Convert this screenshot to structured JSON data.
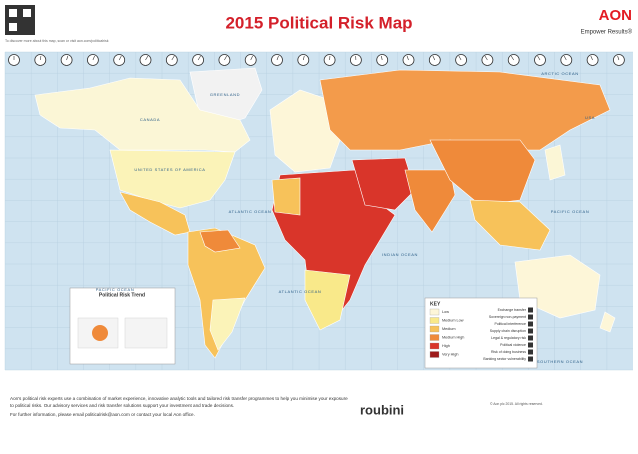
{
  "header": {
    "title": "2015 Political Risk Map",
    "brand": "AON",
    "tagline": "Empower Results®",
    "qr_caption": "To discover more about this map, scan or visit aon.com/politicalrisk"
  },
  "map": {
    "labels": [
      "ARCTIC OCEAN",
      "GREENLAND",
      "CANADA",
      "UNITED STATES OF AMERICA",
      "ATLANTIC OCEAN",
      "PACIFIC OCEAN",
      "PACIFIC OCEAN",
      "INDIAN OCEAN",
      "ATLANTIC OCEAN",
      "SOUTHERN OCEAN",
      "USA"
    ]
  },
  "key": {
    "title": "KEY",
    "levels": [
      "Low",
      "Medium Low",
      "Medium",
      "Medium High",
      "High",
      "Very High"
    ],
    "perils": [
      "Exchange transfer",
      "Sovereign non-payment",
      "Political interference",
      "Supply chain disruption",
      "Legal & regulatory risk",
      "Political violence",
      "Risk of doing business",
      "Banking sector vulnerability"
    ]
  },
  "inset": {
    "title": "Political Risk Trend"
  },
  "partner": "roubini",
  "footer": {
    "text": "Aon's political risk experts use a combination of market experience, innovative analytic tools and tailored risk transfer programmes to help you minimise your exposure to political risks. Our advisory services and risk transfer solutions support your investment and trade decisions.",
    "contact": "For further information, please email politicalrisk@aon.com or contact your local Aon office.",
    "copyright": "© Aon plc 2015. All rights reserved."
  }
}
